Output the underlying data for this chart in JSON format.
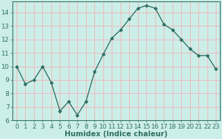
{
  "title": "",
  "xlabel": "Humidex (Indice chaleur)",
  "x": [
    0,
    1,
    2,
    3,
    4,
    5,
    6,
    7,
    8,
    9,
    10,
    11,
    12,
    13,
    14,
    15,
    16,
    17,
    18,
    19,
    20,
    21,
    22,
    23
  ],
  "y": [
    10.0,
    8.7,
    9.0,
    10.0,
    8.8,
    6.7,
    7.4,
    6.4,
    7.4,
    9.6,
    10.9,
    12.1,
    12.7,
    13.5,
    14.3,
    14.5,
    14.3,
    13.1,
    12.7,
    12.0,
    11.3,
    10.8,
    10.8,
    9.8
  ],
  "line_color": "#2d6e63",
  "marker": "D",
  "marker_size": 2.5,
  "bg_color": "#cceee8",
  "grid_color": "#f0b8b8",
  "axis_color": "#2d6e63",
  "ylim": [
    6,
    14.8
  ],
  "yticks": [
    6,
    7,
    8,
    9,
    10,
    11,
    12,
    13,
    14
  ],
  "xlim": [
    -0.5,
    23.5
  ],
  "xticks": [
    0,
    1,
    2,
    3,
    4,
    5,
    6,
    7,
    8,
    9,
    10,
    11,
    12,
    13,
    14,
    15,
    16,
    17,
    18,
    19,
    20,
    21,
    22,
    23
  ],
  "tick_label_fontsize": 6.5,
  "xlabel_fontsize": 7.5
}
